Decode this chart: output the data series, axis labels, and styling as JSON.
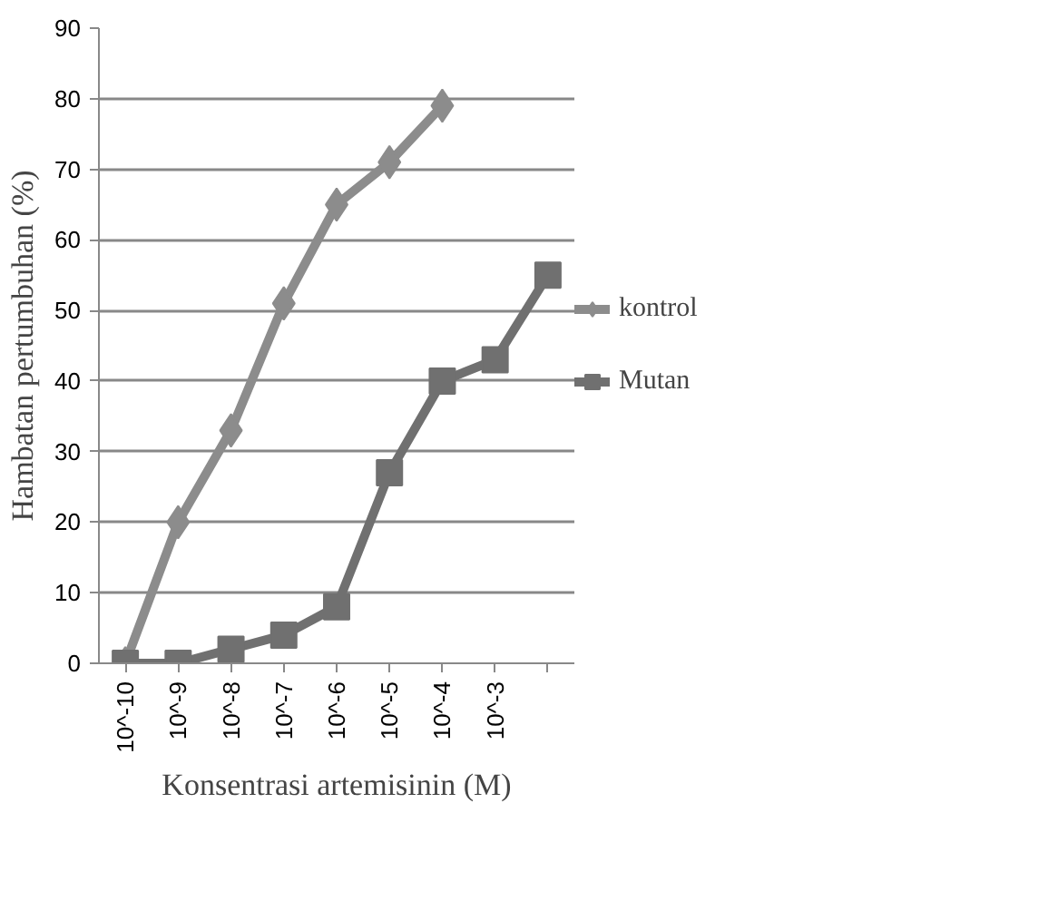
{
  "chart_data": {
    "type": "line",
    "xlabel": "Konsentrasi artemisinin (M)",
    "ylabel": "Hambatan pertumbuhan (%)",
    "categories": [
      "10^-10",
      "10^-9",
      "10^-8",
      "10^-7",
      "10^-6",
      "10^-5",
      "10^-4",
      "10^-3",
      null
    ],
    "series": [
      {
        "name": "kontrol",
        "color": "#8c8c8c",
        "marker": "diamond",
        "values": [
          0,
          20,
          33,
          51,
          65,
          71,
          79,
          null,
          null
        ]
      },
      {
        "name": "Mutan",
        "color": "#707070",
        "marker": "square",
        "values": [
          0,
          0,
          2,
          4,
          8,
          27,
          40,
          43,
          55
        ]
      }
    ],
    "ylim": [
      0,
      90
    ],
    "yticks": [
      0,
      10,
      20,
      30,
      40,
      50,
      60,
      70,
      80,
      90
    ],
    "grid": "y",
    "legend": "right"
  }
}
